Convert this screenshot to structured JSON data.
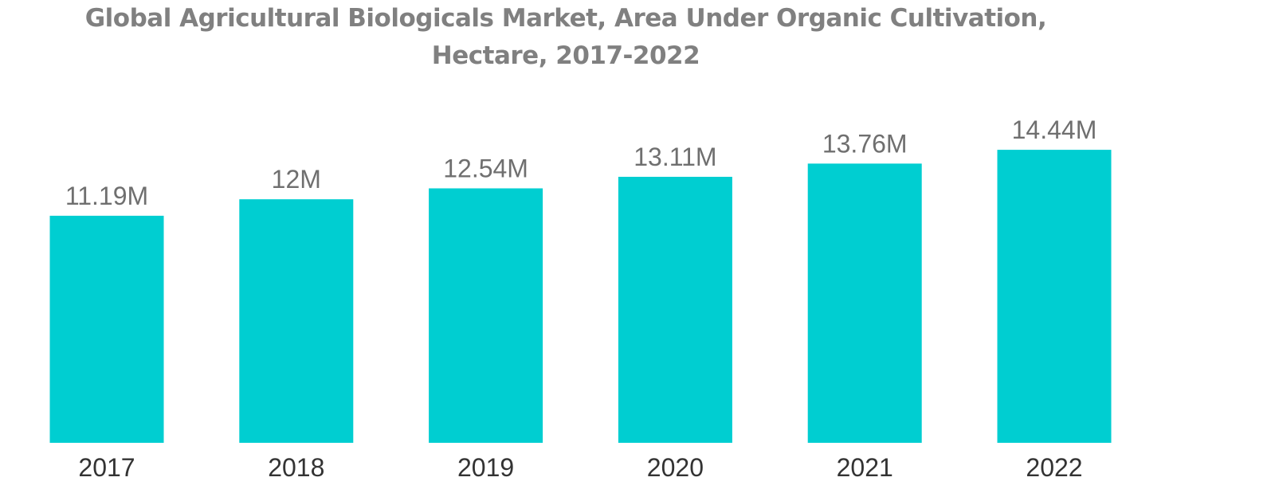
{
  "chart_data": {
    "type": "bar",
    "title_line1": "Global Agricultural Biologicals Market, Area Under Organic Cultivation,",
    "title_line2": "Hectare, 2017-2022",
    "categories": [
      "2017",
      "2018",
      "2019",
      "2020",
      "2021",
      "2022"
    ],
    "values": [
      11.19,
      12,
      12.54,
      13.11,
      13.76,
      14.44
    ],
    "data_labels": [
      "11.19M",
      "12M",
      "12.54M",
      "13.11M",
      "13.76M",
      "14.44M"
    ],
    "unit": "million hectares",
    "xlabel": "",
    "ylabel": "",
    "grid": false,
    "legend": "none",
    "bar_color": "#00CED1"
  }
}
